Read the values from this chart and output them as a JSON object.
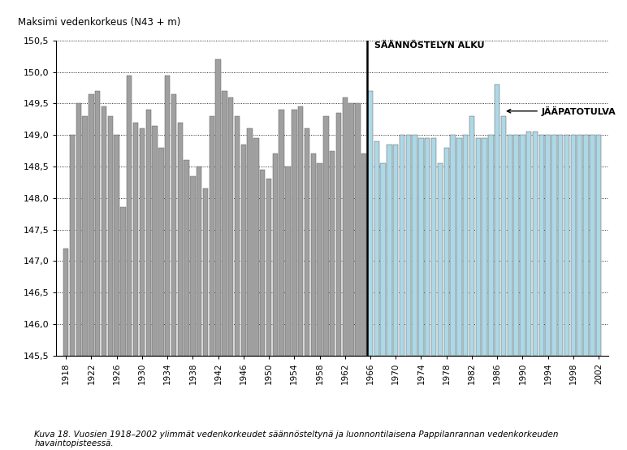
{
  "title": "Maksimi vedenkorkeus (N43 + m)",
  "ylim": [
    145.5,
    150.5
  ],
  "yticks": [
    146.0,
    146.5,
    147.0,
    147.5,
    148.0,
    148.5,
    149.0,
    149.5,
    150.0
  ],
  "bar_bottom": 145.5,
  "regulation_year": 1965,
  "regulation_label": "SÄÄNNÖSTELYN ALKU",
  "jaapatotulva_label": "JÄÄPATOTULVA",
  "jaapatotulva_year": 1987,
  "caption": "Kuva 18. Vuosien 1918–2002 ylimmät vedenkorkeudet säännösteltynä ja luonnontilaisena Pappilanrannan vedenkorkeuden\nhavaintopisteessä.",
  "gray_color": "#a0a0a0",
  "blue_color": "#add8e6",
  "bar_edge_color": "#606060",
  "years": [
    1918,
    1919,
    1920,
    1921,
    1922,
    1923,
    1924,
    1925,
    1926,
    1927,
    1928,
    1929,
    1930,
    1931,
    1932,
    1933,
    1934,
    1935,
    1936,
    1937,
    1938,
    1939,
    1940,
    1941,
    1942,
    1943,
    1944,
    1945,
    1946,
    1947,
    1948,
    1949,
    1950,
    1951,
    1952,
    1953,
    1954,
    1955,
    1956,
    1957,
    1958,
    1959,
    1960,
    1961,
    1962,
    1963,
    1964,
    1965,
    1966,
    1967,
    1968,
    1969,
    1970,
    1971,
    1972,
    1973,
    1974,
    1975,
    1976,
    1977,
    1978,
    1979,
    1980,
    1981,
    1982,
    1983,
    1984,
    1985,
    1986,
    1987,
    1988,
    1989,
    1990,
    1991,
    1992,
    1993,
    1994,
    1995,
    1996,
    1997,
    1998,
    1999,
    2000,
    2001,
    2002
  ],
  "values": [
    147.2,
    149.0,
    149.5,
    149.3,
    149.65,
    149.7,
    149.45,
    149.3,
    149.0,
    147.85,
    149.95,
    149.2,
    149.1,
    149.4,
    149.15,
    148.8,
    149.95,
    149.65,
    149.2,
    148.6,
    148.35,
    148.5,
    148.15,
    149.3,
    150.2,
    149.7,
    149.6,
    149.3,
    148.85,
    149.1,
    148.95,
    148.45,
    148.3,
    148.7,
    149.4,
    148.5,
    149.4,
    149.45,
    149.1,
    148.7,
    148.55,
    149.3,
    148.75,
    149.35,
    149.6,
    149.5,
    149.5,
    148.7,
    149.7,
    148.9,
    148.55,
    148.85,
    148.85,
    149.0,
    149.0,
    149.0,
    148.95,
    148.95,
    148.95,
    148.55,
    148.8,
    149.0,
    148.95,
    149.0,
    149.3,
    148.95,
    148.95,
    149.0,
    149.8,
    149.3,
    149.0,
    149.0,
    149.0,
    149.05,
    149.05,
    149.0,
    149.0,
    149.0,
    149.0,
    149.0,
    149.0,
    149.0,
    149.0,
    149.0,
    149.0
  ]
}
